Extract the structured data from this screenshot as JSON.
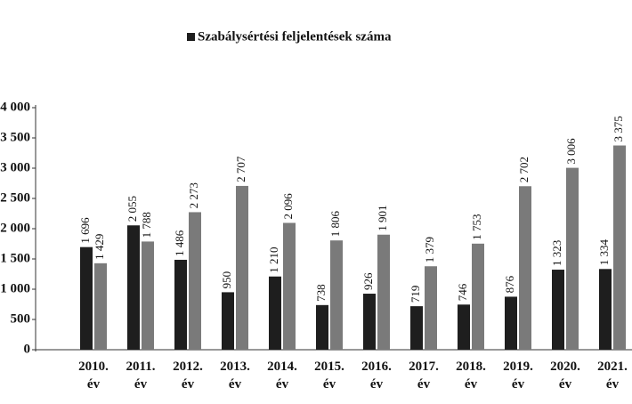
{
  "chart_data": {
    "type": "bar",
    "categories": [
      "2010. év",
      "2011. év",
      "2012. év",
      "2013. év",
      "2014. év",
      "2015. év",
      "2016. év",
      "2017. év",
      "2018. év",
      "2019. év",
      "2020. év",
      "2021. év"
    ],
    "series": [
      {
        "name": "Szabálysértési feljelentések száma",
        "color": "#1e1e1e",
        "values": [
          1696,
          2055,
          1486,
          950,
          1210,
          738,
          926,
          719,
          746,
          876,
          1323,
          1334
        ],
        "value_labels": [
          "1 696",
          "2 055",
          "1 486",
          "950",
          "1 210",
          "738",
          "926",
          "719",
          "746",
          "876",
          "1 323",
          "1 334"
        ]
      },
      {
        "color": "#7a7a7a",
        "values": [
          1429,
          1788,
          2273,
          2707,
          2096,
          1806,
          1901,
          1379,
          1753,
          2702,
          3006,
          3375
        ],
        "value_labels": [
          "1 429",
          "1 788",
          "2 273",
          "2 707",
          "2 096",
          "1 806",
          "1 901",
          "1 379",
          "1 753",
          "2 702",
          "3 006",
          "3 375"
        ]
      }
    ],
    "ylim": [
      0,
      4000
    ],
    "yticks": [
      0,
      500,
      {
        "value": 1000,
        "label": "1 000"
      },
      {
        "value": 1500,
        "label": "1 500"
      },
      {
        "value": 2000,
        "label": "2 000"
      },
      {
        "value": 2500,
        "label": "2 500"
      },
      {
        "value": 3000,
        "label": "3 000"
      },
      {
        "value": 3500,
        "label": "3 500"
      },
      {
        "value": 4000,
        "label": "4 000"
      }
    ]
  }
}
